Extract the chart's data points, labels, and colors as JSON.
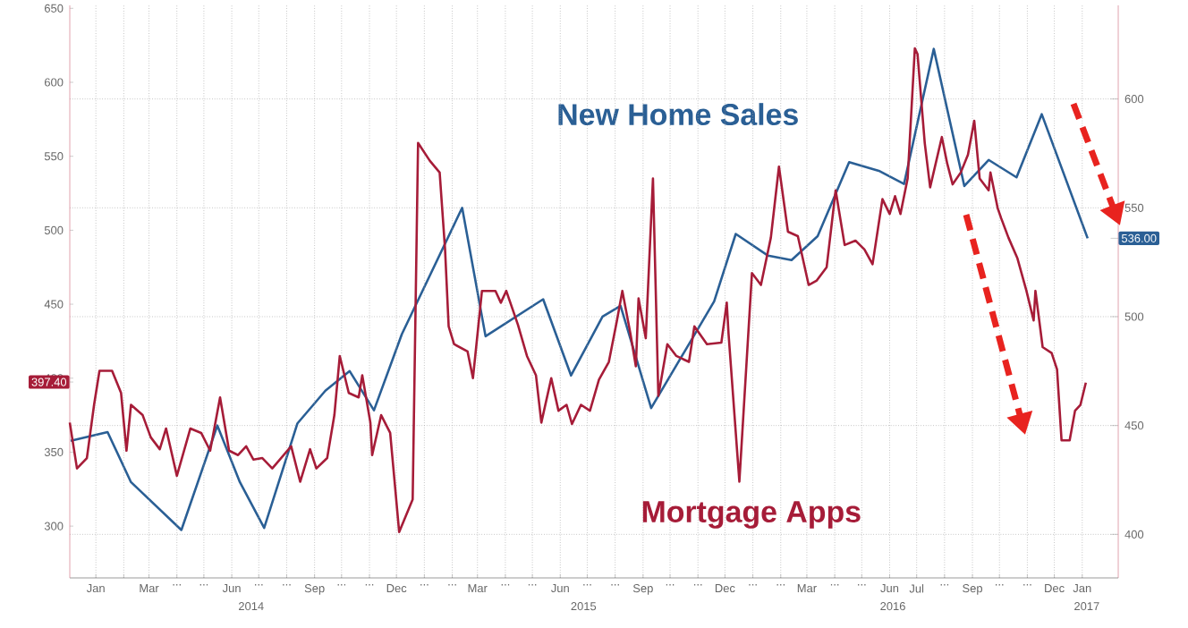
{
  "chart_data": {
    "type": "line",
    "grid": true,
    "xlim": [
      "2013-12-17",
      "2017-02-24"
    ],
    "ylim": [
      265,
      652
    ],
    "yticks": [
      300,
      350,
      {
        "value": 397.4,
        "label": "397.40"
      },
      400,
      450,
      500,
      550,
      600,
      650
    ],
    "y2lim": [
      380,
      643
    ],
    "y2ticks": [
      400,
      450,
      500,
      {
        "value": 536,
        "label": "536.00"
      },
      550,
      600
    ],
    "xticks": [
      {
        "value": "2014-01-15",
        "label": "Jan"
      },
      {
        "value": "2014-02-15",
        "label": null
      },
      {
        "value": "2014-03-15",
        "label": "Mar"
      },
      {
        "value": "2014-04-15",
        "label": "..."
      },
      {
        "value": "2014-05-15",
        "label": "..."
      },
      {
        "value": "2014-06-15",
        "label": "Jun"
      },
      {
        "value": "2014-07-15",
        "label": "..."
      },
      {
        "value": "2014-08-15",
        "label": "..."
      },
      {
        "value": "2014-09-15",
        "label": "Sep"
      },
      {
        "value": "2014-10-15",
        "label": "..."
      },
      {
        "value": "2014-11-15",
        "label": "..."
      },
      {
        "value": "2014-12-15",
        "label": "Dec"
      },
      {
        "value": "2015-01-15",
        "label": "..."
      },
      {
        "value": "2015-02-15",
        "label": "..."
      },
      {
        "value": "2015-03-15",
        "label": "Mar"
      },
      {
        "value": "2015-04-15",
        "label": "..."
      },
      {
        "value": "2015-05-15",
        "label": "..."
      },
      {
        "value": "2015-06-15",
        "label": "Jun"
      },
      {
        "value": "2015-07-15",
        "label": "..."
      },
      {
        "value": "2015-08-15",
        "label": "..."
      },
      {
        "value": "2015-09-15",
        "label": "Sep"
      },
      {
        "value": "2015-10-15",
        "label": "..."
      },
      {
        "value": "2015-11-15",
        "label": "..."
      },
      {
        "value": "2015-12-15",
        "label": "Dec"
      },
      {
        "value": "2016-01-15",
        "label": "..."
      },
      {
        "value": "2016-02-15",
        "label": "..."
      },
      {
        "value": "2016-03-15",
        "label": "Mar"
      },
      {
        "value": "2016-04-15",
        "label": "..."
      },
      {
        "value": "2016-05-15",
        "label": "..."
      },
      {
        "value": "2016-06-15",
        "label": "Jun"
      },
      {
        "value": "2016-07-15",
        "label": "Jul"
      },
      {
        "value": "2016-08-15",
        "label": "..."
      },
      {
        "value": "2016-09-15",
        "label": "Sep"
      },
      {
        "value": "2016-10-15",
        "label": "..."
      },
      {
        "value": "2016-11-15",
        "label": "..."
      },
      {
        "value": "2016-12-15",
        "label": "Dec"
      },
      {
        "value": "2017-01-15",
        "label": "Jan"
      }
    ],
    "annotations": [
      "2014",
      "2015",
      "2016",
      "2017"
    ],
    "series": [
      {
        "name": "New Home Sales",
        "color": "#2a5f95",
        "axis": "y2",
        "x": [
          "2013-12-18",
          "2014-01-28",
          "2014-02-23",
          "2014-04-20",
          "2014-05-30",
          "2014-06-24",
          "2014-07-21",
          "2014-08-27",
          "2014-09-27",
          "2014-10-24",
          "2014-11-20",
          "2014-12-21",
          "2015-02-26",
          "2015-03-24",
          "2015-05-27",
          "2015-06-27",
          "2015-08-01",
          "2015-08-21",
          "2015-09-24",
          "2015-12-03",
          "2015-12-27",
          "2016-02-01",
          "2016-02-27",
          "2016-03-27",
          "2016-05-01",
          "2016-06-03",
          "2016-07-01",
          "2016-08-03",
          "2016-09-06",
          "2016-10-03",
          "2016-11-03",
          "2016-12-01",
          "2017-01-21"
        ],
        "values": [
          443,
          447,
          424,
          402,
          450,
          424,
          403,
          451,
          466,
          475,
          457,
          492,
          550,
          491,
          508,
          473,
          500,
          505,
          458,
          507,
          538,
          528,
          526,
          537,
          571,
          567,
          561,
          623,
          560,
          572,
          564,
          593,
          536
        ]
      },
      {
        "name": "Mortgage Apps",
        "color": "#a61c38",
        "x": [
          "2013-12-17",
          "2013-12-25",
          "2014-01-05",
          "2014-01-13",
          "2014-01-19",
          "2014-02-02",
          "2014-02-12",
          "2014-02-18",
          "2014-02-23",
          "2014-03-08",
          "2014-03-17",
          "2014-03-27",
          "2014-04-03",
          "2014-04-15",
          "2014-04-30",
          "2014-05-12",
          "2014-05-22",
          "2014-06-02",
          "2014-06-12",
          "2014-06-22",
          "2014-07-01",
          "2014-07-09",
          "2014-07-19",
          "2014-07-30",
          "2014-08-20",
          "2014-08-30",
          "2014-09-10",
          "2014-09-17",
          "2014-09-29",
          "2014-10-07",
          "2014-10-13",
          "2014-10-23",
          "2014-11-03",
          "2014-11-07",
          "2014-11-16",
          "2014-11-18",
          "2014-11-28",
          "2014-12-08",
          "2014-12-18",
          "2015-01-02",
          "2015-01-08",
          "2015-01-21",
          "2015-02-01",
          "2015-02-07",
          "2015-02-11",
          "2015-02-17",
          "2015-03-04",
          "2015-03-10",
          "2015-03-20",
          "2015-04-04",
          "2015-04-10",
          "2015-04-16",
          "2015-04-29",
          "2015-05-09",
          "2015-05-19",
          "2015-05-25",
          "2015-06-05",
          "2015-06-13",
          "2015-06-22",
          "2015-06-28",
          "2015-07-08",
          "2015-07-18",
          "2015-07-28",
          "2015-08-08",
          "2015-08-17",
          "2015-08-23",
          "2015-09-01",
          "2015-09-07",
          "2015-09-10",
          "2015-09-18",
          "2015-09-26",
          "2015-10-02",
          "2015-10-12",
          "2015-10-22",
          "2015-11-05",
          "2015-11-11",
          "2015-11-25",
          "2015-12-11",
          "2015-12-17",
          "2015-12-19",
          "2015-12-31",
          "2016-01-14",
          "2016-01-24",
          "2016-02-04",
          "2016-02-13",
          "2016-02-23",
          "2016-03-05",
          "2016-03-17",
          "2016-03-26",
          "2016-04-06",
          "2016-04-16",
          "2016-04-26",
          "2016-05-08",
          "2016-05-18",
          "2016-05-27",
          "2016-06-07",
          "2016-06-15",
          "2016-06-21",
          "2016-06-27",
          "2016-07-05",
          "2016-07-13",
          "2016-07-16",
          "2016-07-24",
          "2016-07-30",
          "2016-08-12",
          "2016-08-18",
          "2016-08-24",
          "2016-09-02",
          "2016-09-10",
          "2016-09-17",
          "2016-09-23",
          "2016-10-03",
          "2016-10-05",
          "2016-10-13",
          "2016-10-17",
          "2016-10-25",
          "2016-11-04",
          "2016-11-14",
          "2016-11-22",
          "2016-11-24",
          "2016-12-02",
          "2016-12-12",
          "2016-12-18",
          "2016-12-23",
          "2017-01-01",
          "2017-01-07",
          "2017-01-13",
          "2017-01-19"
        ],
        "values": [
          370,
          339,
          346,
          382,
          405,
          405,
          390,
          351,
          382,
          375,
          360,
          352,
          366,
          334,
          366,
          363,
          351,
          387,
          351,
          348,
          354,
          345,
          346,
          339,
          354,
          330,
          352,
          339,
          346,
          375,
          415,
          390,
          387,
          402,
          370,
          348,
          375,
          363,
          296,
          318,
          559,
          547,
          539,
          487,
          435,
          423,
          418,
          400,
          459,
          459,
          451,
          459,
          436,
          415,
          402,
          370,
          400,
          378,
          382,
          369,
          382,
          378,
          399,
          411,
          439,
          459,
          430,
          408,
          454,
          427,
          535,
          388,
          423,
          415,
          411,
          435,
          423,
          424,
          451,
          430,
          330,
          471,
          463,
          495,
          543,
          499,
          496,
          463,
          466,
          475,
          527,
          490,
          493,
          487,
          477,
          521,
          511,
          523,
          511,
          535,
          623,
          619,
          559,
          529,
          563,
          545,
          531,
          539,
          551,
          574,
          535,
          527,
          539,
          515,
          508,
          495,
          481,
          459,
          439,
          459,
          421,
          417,
          406,
          358,
          358,
          378,
          382,
          397
        ]
      }
    ]
  }
}
